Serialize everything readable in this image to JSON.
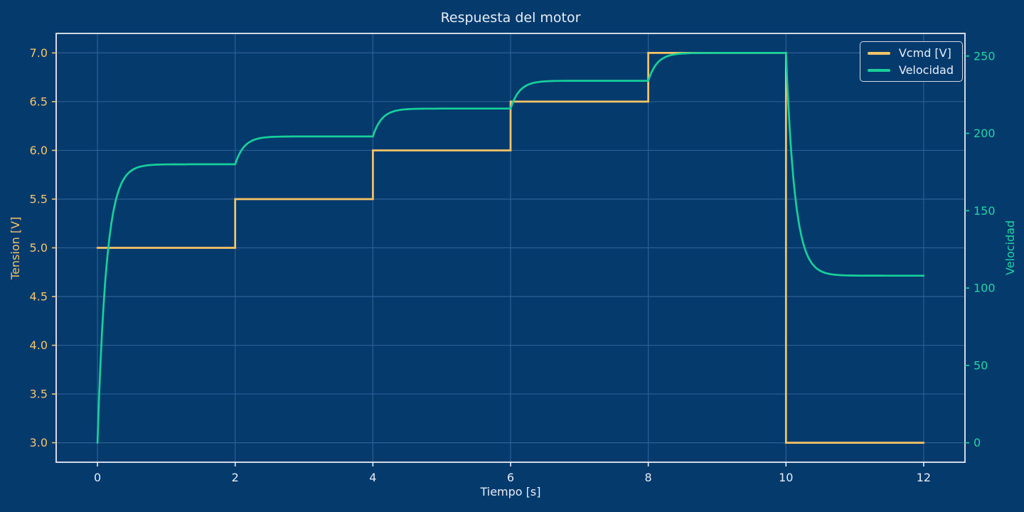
{
  "colors": {
    "background": "#053a6d",
    "grid": "#2d5f94",
    "spine": "#e8edf3",
    "text": "#e7eef6",
    "left_axis": "#f7c566",
    "right_axis": "#1fd6a2"
  },
  "chart_data": {
    "type": "line",
    "title": "Respuesta del motor",
    "xlabel": "Tiempo [s]",
    "grid": true,
    "x_axis": {
      "lim": [
        -0.6,
        12.6
      ],
      "ticks": [
        0,
        2,
        4,
        6,
        8,
        10,
        12
      ],
      "tick_labels": [
        "0",
        "2",
        "4",
        "6",
        "8",
        "10",
        "12"
      ],
      "color": "#e7eef6"
    },
    "left_axis": {
      "label": "Tension [V]",
      "lim": [
        2.8,
        7.2
      ],
      "ticks": [
        3.0,
        3.5,
        4.0,
        4.5,
        5.0,
        5.5,
        6.0,
        6.5,
        7.0
      ],
      "tick_labels": [
        "3.0",
        "3.5",
        "4.0",
        "4.5",
        "5.0",
        "5.5",
        "6.0",
        "6.5",
        "7.0"
      ],
      "color": "#f7c566"
    },
    "right_axis": {
      "label": "Velocidad",
      "lim": [
        -12.6,
        264.6
      ],
      "ticks": [
        0,
        50,
        100,
        150,
        200,
        250
      ],
      "tick_labels": [
        "0",
        "50",
        "100",
        "150",
        "200",
        "250"
      ],
      "color": "#1fd6a2"
    },
    "legend": {
      "position": "upper right",
      "entries": [
        {
          "label": "Vcmd [V]",
          "series": "vcmd"
        },
        {
          "label": "Velocidad",
          "series": "velocidad"
        }
      ]
    },
    "series": [
      {
        "id": "vcmd",
        "name": "Vcmd [V]",
        "axis": "left",
        "style": "step",
        "color": "#f7c566",
        "linewidth": 2.7,
        "points": [
          [
            0,
            5.0
          ],
          [
            2,
            5.0
          ],
          [
            2,
            5.5
          ],
          [
            4,
            5.5
          ],
          [
            4,
            6.0
          ],
          [
            6,
            6.0
          ],
          [
            6,
            6.5
          ],
          [
            8,
            6.5
          ],
          [
            8,
            7.0
          ],
          [
            10,
            7.0
          ],
          [
            10,
            3.0
          ],
          [
            12,
            3.0
          ]
        ]
      },
      {
        "id": "velocidad",
        "name": "Velocidad",
        "axis": "right",
        "style": "first-order-exponential",
        "color": "#17d09a",
        "linewidth": 2.7,
        "model": {
          "gain": 36,
          "tau": 0.13
        },
        "segments": [
          {
            "t_start": 0,
            "t_end": 2,
            "v_start": 0,
            "v_target": 180
          },
          {
            "t_start": 2,
            "t_end": 4,
            "v_start": 180,
            "v_target": 198
          },
          {
            "t_start": 4,
            "t_end": 6,
            "v_start": 198,
            "v_target": 216
          },
          {
            "t_start": 6,
            "t_end": 8,
            "v_start": 216,
            "v_target": 234
          },
          {
            "t_start": 8,
            "t_end": 10,
            "v_start": 234,
            "v_target": 252
          },
          {
            "t_start": 10,
            "t_end": 12,
            "v_start": 252,
            "v_target": 108
          }
        ]
      }
    ]
  }
}
